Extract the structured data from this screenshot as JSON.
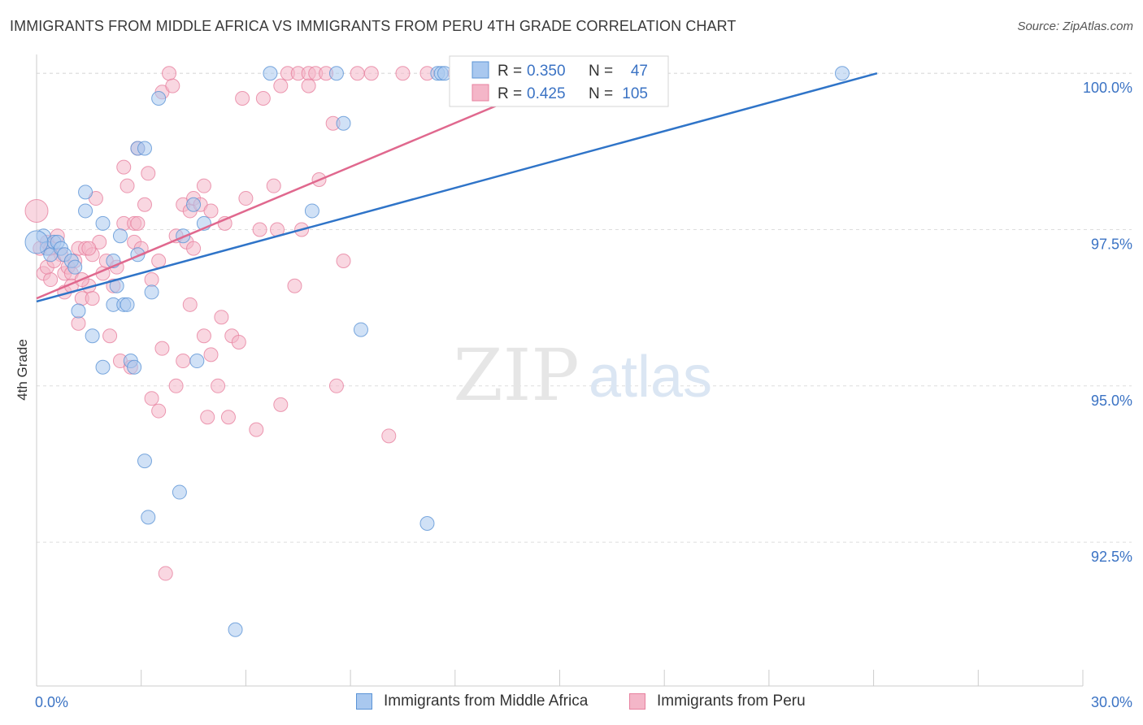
{
  "title": "IMMIGRANTS FROM MIDDLE AFRICA VS IMMIGRANTS FROM PERU 4TH GRADE CORRELATION CHART",
  "source": "Source: ZipAtlas.com",
  "watermark": {
    "zip": "ZIP",
    "atlas": "atlas"
  },
  "colors": {
    "blue_fill": "#a9c8ef",
    "blue_stroke": "#5b94d6",
    "blue_line": "#2f74c8",
    "pink_fill": "#f4b6c8",
    "pink_stroke": "#e7819f",
    "pink_line": "#e0688e",
    "tick_label": "#3b73c4",
    "grid": "#dddddd"
  },
  "legend": {
    "rows": [
      {
        "r_label": "R =",
        "r_value": "0.350",
        "n_label": "N =",
        "n_value": "47"
      },
      {
        "r_label": "R =",
        "r_value": "0.425",
        "n_label": "N =",
        "n_value": "105"
      }
    ]
  },
  "chart_data": {
    "type": "scatter",
    "title": "IMMIGRANTS FROM MIDDLE AFRICA VS IMMIGRANTS FROM PERU 4TH GRADE CORRELATION CHART",
    "xlabel": "",
    "ylabel": "4th Grade",
    "xlim": [
      0,
      30
    ],
    "ylim": [
      90.2,
      100.25
    ],
    "x_tick_labels": [
      "0.0%",
      "30.0%"
    ],
    "y_ticks": [
      92.5,
      95.0,
      97.5,
      100.0
    ],
    "y_tick_labels": [
      "92.5%",
      "95.0%",
      "97.5%",
      "100.0%"
    ],
    "grid": "horizontal dashed",
    "legend_position": "top-center",
    "series": [
      {
        "name": "Immigrants from Middle Africa",
        "color": "#a9c8ef",
        "R": 0.35,
        "N": 47,
        "trend": [
          [
            0,
            96.35
          ],
          [
            24.1,
            100.0
          ]
        ],
        "points": [
          [
            0.2,
            97.4
          ],
          [
            0.3,
            97.2
          ],
          [
            0.4,
            97.1
          ],
          [
            0.5,
            97.3
          ],
          [
            0.6,
            97.3
          ],
          [
            0.7,
            97.2
          ],
          [
            0.8,
            97.1
          ],
          [
            1.0,
            97.0
          ],
          [
            1.1,
            96.9
          ],
          [
            1.2,
            96.2
          ],
          [
            1.4,
            98.1
          ],
          [
            1.4,
            97.8
          ],
          [
            1.6,
            95.8
          ],
          [
            1.9,
            97.6
          ],
          [
            1.9,
            95.3
          ],
          [
            2.2,
            97.0
          ],
          [
            2.2,
            96.3
          ],
          [
            2.3,
            96.6
          ],
          [
            2.4,
            97.4
          ],
          [
            2.5,
            96.3
          ],
          [
            2.6,
            96.3
          ],
          [
            2.7,
            95.4
          ],
          [
            2.8,
            95.3
          ],
          [
            2.9,
            97.1
          ],
          [
            2.9,
            98.8
          ],
          [
            3.1,
            98.8
          ],
          [
            3.1,
            93.8
          ],
          [
            3.2,
            92.9
          ],
          [
            3.3,
            96.5
          ],
          [
            3.5,
            99.6
          ],
          [
            4.1,
            93.3
          ],
          [
            4.2,
            97.4
          ],
          [
            4.5,
            97.9
          ],
          [
            4.6,
            95.4
          ],
          [
            4.8,
            97.6
          ],
          [
            5.7,
            91.1
          ],
          [
            6.7,
            100.0
          ],
          [
            7.9,
            97.8
          ],
          [
            8.6,
            100.0
          ],
          [
            8.8,
            99.2
          ],
          [
            9.3,
            95.9
          ],
          [
            11.2,
            92.8
          ],
          [
            11.5,
            100.0
          ],
          [
            11.6,
            100.0
          ],
          [
            11.7,
            100.0
          ],
          [
            23.1,
            100.0
          ],
          [
            0.0,
            97.3
          ]
        ]
      },
      {
        "name": "Immigrants from Peru",
        "color": "#f4b6c8",
        "R": 0.425,
        "N": 105,
        "trend": [
          [
            0,
            96.4
          ],
          [
            15.4,
            100.0
          ]
        ],
        "points": [
          [
            0.0,
            97.8
          ],
          [
            0.1,
            97.2
          ],
          [
            0.2,
            96.8
          ],
          [
            0.3,
            97.3
          ],
          [
            0.4,
            96.7
          ],
          [
            0.4,
            97.2
          ],
          [
            0.6,
            97.4
          ],
          [
            0.7,
            97.1
          ],
          [
            0.8,
            96.8
          ],
          [
            0.8,
            96.5
          ],
          [
            0.9,
            96.9
          ],
          [
            1.0,
            96.8
          ],
          [
            1.0,
            96.6
          ],
          [
            1.1,
            97.0
          ],
          [
            1.2,
            96.0
          ],
          [
            1.2,
            97.2
          ],
          [
            1.3,
            96.4
          ],
          [
            1.4,
            97.2
          ],
          [
            1.5,
            96.6
          ],
          [
            1.6,
            96.4
          ],
          [
            1.6,
            97.1
          ],
          [
            1.7,
            98.0
          ],
          [
            1.8,
            97.3
          ],
          [
            1.9,
            96.8
          ],
          [
            2.0,
            97.0
          ],
          [
            2.1,
            95.8
          ],
          [
            2.2,
            96.6
          ],
          [
            2.3,
            96.9
          ],
          [
            2.4,
            95.4
          ],
          [
            2.5,
            98.5
          ],
          [
            2.5,
            97.6
          ],
          [
            2.6,
            98.2
          ],
          [
            2.7,
            95.3
          ],
          [
            2.8,
            97.3
          ],
          [
            2.8,
            97.6
          ],
          [
            2.9,
            97.6
          ],
          [
            3.0,
            97.2
          ],
          [
            3.1,
            97.9
          ],
          [
            3.2,
            98.4
          ],
          [
            3.3,
            96.7
          ],
          [
            3.3,
            94.8
          ],
          [
            3.5,
            97.0
          ],
          [
            3.5,
            94.6
          ],
          [
            3.6,
            99.7
          ],
          [
            3.6,
            95.6
          ],
          [
            3.8,
            100.0
          ],
          [
            3.9,
            99.8
          ],
          [
            4.0,
            97.4
          ],
          [
            4.0,
            95.0
          ],
          [
            4.2,
            97.9
          ],
          [
            4.2,
            95.4
          ],
          [
            4.3,
            97.3
          ],
          [
            4.4,
            97.8
          ],
          [
            4.4,
            96.3
          ],
          [
            4.5,
            98.0
          ],
          [
            4.5,
            97.2
          ],
          [
            4.7,
            97.9
          ],
          [
            4.8,
            98.2
          ],
          [
            4.8,
            95.8
          ],
          [
            4.9,
            94.5
          ],
          [
            5.0,
            97.8
          ],
          [
            5.0,
            95.5
          ],
          [
            5.2,
            95.0
          ],
          [
            5.3,
            96.1
          ],
          [
            5.4,
            97.6
          ],
          [
            5.5,
            94.5
          ],
          [
            5.6,
            95.8
          ],
          [
            5.8,
            95.7
          ],
          [
            5.9,
            99.6
          ],
          [
            6.0,
            98.0
          ],
          [
            6.3,
            94.3
          ],
          [
            6.4,
            97.5
          ],
          [
            6.5,
            99.6
          ],
          [
            6.8,
            98.2
          ],
          [
            6.9,
            97.5
          ],
          [
            7.0,
            99.8
          ],
          [
            7.0,
            94.7
          ],
          [
            7.2,
            100.0
          ],
          [
            7.4,
            96.6
          ],
          [
            7.5,
            100.0
          ],
          [
            7.6,
            97.5
          ],
          [
            7.8,
            100.0
          ],
          [
            7.8,
            99.8
          ],
          [
            8.0,
            100.0
          ],
          [
            8.1,
            98.3
          ],
          [
            8.3,
            100.0
          ],
          [
            8.5,
            99.2
          ],
          [
            8.6,
            95.0
          ],
          [
            8.8,
            97.0
          ],
          [
            9.2,
            100.0
          ],
          [
            9.6,
            100.0
          ],
          [
            10.1,
            94.2
          ],
          [
            10.5,
            100.0
          ],
          [
            11.2,
            100.0
          ],
          [
            12.0,
            100.0
          ],
          [
            12.8,
            100.0
          ],
          [
            13.5,
            100.0
          ],
          [
            14.2,
            100.0
          ],
          [
            15.0,
            100.0
          ],
          [
            3.7,
            92.0
          ],
          [
            2.9,
            98.8
          ],
          [
            1.5,
            97.2
          ],
          [
            0.3,
            96.9
          ],
          [
            0.5,
            97.0
          ],
          [
            1.3,
            96.7
          ]
        ]
      }
    ]
  },
  "bottom_legend": [
    {
      "label": "Immigrants from Middle Africa"
    },
    {
      "label": "Immigrants from Peru"
    }
  ]
}
